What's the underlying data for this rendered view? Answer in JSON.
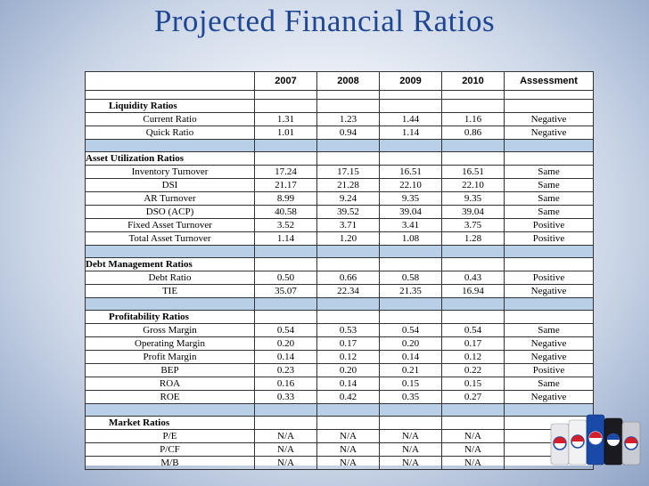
{
  "title": "Projected Financial Ratios",
  "header": {
    "label": "",
    "y2007": "2007",
    "y2008": "2008",
    "y2009": "2009",
    "y2010": "2010",
    "assessment": "Assessment"
  },
  "sections": [
    {
      "name": "Liquidity Ratios",
      "rows": [
        {
          "label": "Current Ratio",
          "v": [
            "1.31",
            "1.23",
            "1.44",
            "1.16"
          ],
          "assessment": "Negative"
        },
        {
          "label": "Quick Ratio",
          "v": [
            "1.01",
            "0.94",
            "1.14",
            "0.86"
          ],
          "assessment": "Negative"
        }
      ]
    },
    {
      "name": "Asset Utilization Ratios",
      "rows": [
        {
          "label": "Inventory Turnover",
          "v": [
            "17.24",
            "17.15",
            "16.51",
            "16.51"
          ],
          "assessment": "Same"
        },
        {
          "label": "DSI",
          "v": [
            "21.17",
            "21.28",
            "22.10",
            "22.10"
          ],
          "assessment": "Same"
        },
        {
          "label": "AR Turnover",
          "v": [
            "8.99",
            "9.24",
            "9.35",
            "9.35"
          ],
          "assessment": "Same"
        },
        {
          "label": "DSO (ACP)",
          "v": [
            "40.58",
            "39.52",
            "39.04",
            "39.04"
          ],
          "assessment": "Same"
        },
        {
          "label": "Fixed Asset Turnover",
          "v": [
            "3.52",
            "3.71",
            "3.41",
            "3.75"
          ],
          "assessment": "Positive"
        },
        {
          "label": "Total Asset Turnover",
          "v": [
            "1.14",
            "1.20",
            "1.08",
            "1.28"
          ],
          "assessment": "Positive"
        }
      ]
    },
    {
      "name": "Debt Management Ratios",
      "rows": [
        {
          "label": "Debt Ratio",
          "v": [
            "0.50",
            "0.66",
            "0.58",
            "0.43"
          ],
          "assessment": "Positive"
        },
        {
          "label": "TIE",
          "v": [
            "35.07",
            "22.34",
            "21.35",
            "16.94"
          ],
          "assessment": "Negative"
        }
      ]
    },
    {
      "name": "Profitability Ratios",
      "rows": [
        {
          "label": "Gross Margin",
          "v": [
            "0.54",
            "0.53",
            "0.54",
            "0.54"
          ],
          "assessment": "Same"
        },
        {
          "label": "Operating Margin",
          "v": [
            "0.20",
            "0.17",
            "0.20",
            "0.17"
          ],
          "assessment": "Negative"
        },
        {
          "label": "Profit Margin",
          "v": [
            "0.14",
            "0.12",
            "0.14",
            "0.12"
          ],
          "assessment": "Negative"
        },
        {
          "label": "BEP",
          "v": [
            "0.23",
            "0.20",
            "0.21",
            "0.22"
          ],
          "assessment": "Positive"
        },
        {
          "label": "ROA",
          "v": [
            "0.16",
            "0.14",
            "0.15",
            "0.15"
          ],
          "assessment": "Same"
        },
        {
          "label": "ROE",
          "v": [
            "0.33",
            "0.42",
            "0.35",
            "0.27"
          ],
          "assessment": "Negative"
        }
      ]
    },
    {
      "name": "Market Ratios",
      "rows": [
        {
          "label": "P/E",
          "v": [
            "N/A",
            "N/A",
            "N/A",
            "N/A"
          ],
          "assessment": ""
        },
        {
          "label": "P/CF",
          "v": [
            "N/A",
            "N/A",
            "N/A",
            "N/A"
          ],
          "assessment": ""
        },
        {
          "label": "M/B",
          "v": [
            "N/A",
            "N/A",
            "N/A",
            "N/A"
          ],
          "assessment": ""
        }
      ]
    }
  ],
  "colors": {
    "title": "#1f4690",
    "spacer": "#b8cfe8",
    "brand_blue": "#1a4aa8",
    "brand_red": "#d21f2b"
  },
  "decor": {
    "image": "pepsi-cans-image"
  }
}
